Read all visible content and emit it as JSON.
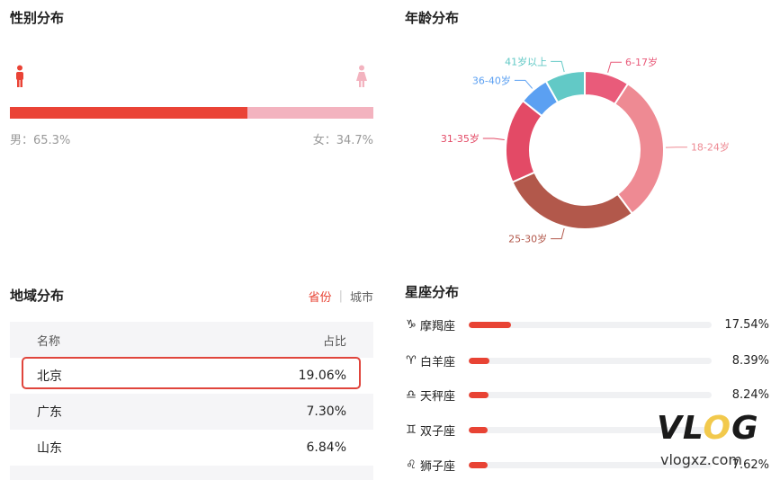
{
  "gender": {
    "title": "性别分布",
    "male_label": "男：65.3%",
    "female_label": "女：34.7%",
    "male_ratio": 0.653,
    "female_ratio": 0.347,
    "male_color": "#ea4336",
    "female_color": "#f3b3bf"
  },
  "age": {
    "title": "年龄分布"
  },
  "chart_data": {
    "type": "pie",
    "categories": [
      "6-17岁",
      "18-24岁",
      "25-30岁",
      "31-35岁",
      "36-40岁",
      "41岁以上"
    ],
    "values": [
      9,
      30,
      28,
      17,
      6,
      8
    ],
    "colors": [
      "#e95b7a",
      "#ee8a93",
      "#b2584b",
      "#e34a66",
      "#5ba0f2",
      "#62c9c6"
    ],
    "donut": true
  },
  "region": {
    "title": "地域分布",
    "tab_active": "省份",
    "tab_sep": "|",
    "tab_other": "城市",
    "header": {
      "name": "名称",
      "ratio": "占比"
    },
    "rows": [
      {
        "name": "北京",
        "ratio": "19.06%"
      },
      {
        "name": "广东",
        "ratio": "7.30%"
      },
      {
        "name": "山东",
        "ratio": "6.84%"
      }
    ]
  },
  "constellation": {
    "title": "星座分布",
    "items": [
      {
        "icon": "♑",
        "icon_name": "capricorn-icon",
        "name": "摩羯座",
        "pct": "17.54%",
        "value": 17.54
      },
      {
        "icon": "♈",
        "icon_name": "aries-icon",
        "name": "白羊座",
        "pct": "8.39%",
        "value": 8.39
      },
      {
        "icon": "♎",
        "icon_name": "libra-icon",
        "name": "天秤座",
        "pct": "8.24%",
        "value": 8.24
      },
      {
        "icon": "♊",
        "icon_name": "gemini-icon",
        "name": "双子座",
        "pct": "",
        "value": 7.9
      },
      {
        "icon": "♌",
        "icon_name": "leo-icon",
        "name": "狮子座",
        "pct": "7.62%",
        "value": 7.62
      }
    ],
    "max_value": 100
  },
  "watermark": {
    "logo_v": "V",
    "logo_l": "L",
    "logo_o": "O",
    "logo_g": "G",
    "url": "vlogxz.com"
  }
}
